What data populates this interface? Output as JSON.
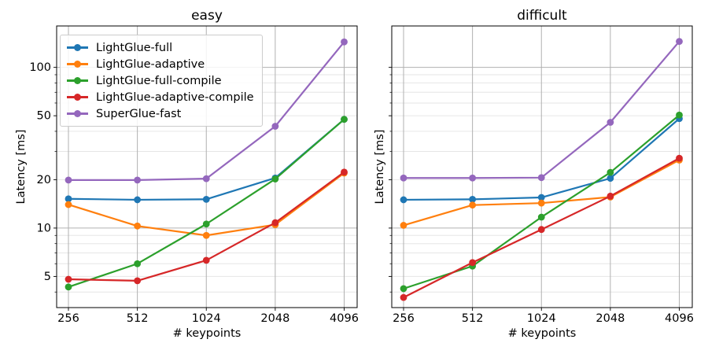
{
  "figure": {
    "background": "#ffffff"
  },
  "colors": {
    "grid_major": "#b0b0b0",
    "grid_minor": "#e6e6e6",
    "spine": "#000000",
    "text": "#000000"
  },
  "legend": {
    "entries": [
      {
        "label": "LightGlue-full",
        "color": "#1f77b4"
      },
      {
        "label": "LightGlue-adaptive",
        "color": "#ff7f0e"
      },
      {
        "label": "LightGlue-full-compile",
        "color": "#2ca02c"
      },
      {
        "label": "LightGlue-adaptive-compile",
        "color": "#d62728"
      },
      {
        "label": "SuperGlue-fast",
        "color": "#9467bd"
      }
    ]
  },
  "chart_data": [
    {
      "type": "line",
      "title": "easy",
      "xlabel": "# keypoints",
      "ylabel": "Latency [ms]",
      "x_scale": "log2",
      "y_scale": "log10",
      "x": [
        256,
        512,
        1024,
        2048,
        4096
      ],
      "x_tick_labels": [
        "256",
        "512",
        "1024",
        "2048",
        "4096"
      ],
      "y_tick_values": [
        5,
        10,
        20,
        50,
        100
      ],
      "y_tick_labels": [
        "5",
        "10",
        "20",
        "50",
        "100"
      ],
      "y_grid_major": [
        10,
        100
      ],
      "ylim": [
        3.2,
        181
      ],
      "show_y_tick_labels": true,
      "legend_visible": true,
      "grid": true,
      "series": [
        {
          "name": "LightGlue-full",
          "color": "#1f77b4",
          "values": [
            15.2,
            15.0,
            15.1,
            20.5,
            47.5
          ]
        },
        {
          "name": "LightGlue-adaptive",
          "color": "#ff7f0e",
          "values": [
            14.0,
            10.3,
            9.0,
            10.5,
            22.0
          ]
        },
        {
          "name": "LightGlue-full-compile",
          "color": "#2ca02c",
          "values": [
            4.3,
            6.0,
            10.6,
            20.2,
            47.5
          ]
        },
        {
          "name": "LightGlue-adaptive-compile",
          "color": "#d62728",
          "values": [
            4.8,
            4.7,
            6.3,
            10.8,
            22.3
          ]
        },
        {
          "name": "SuperGlue-fast",
          "color": "#9467bd",
          "values": [
            19.9,
            19.9,
            20.3,
            43.0,
            144
          ]
        }
      ]
    },
    {
      "type": "line",
      "title": "difficult",
      "xlabel": "# keypoints",
      "ylabel": "Latency [ms]",
      "x_scale": "log2",
      "y_scale": "log10",
      "x": [
        256,
        512,
        1024,
        2048,
        4096
      ],
      "x_tick_labels": [
        "256",
        "512",
        "1024",
        "2048",
        "4096"
      ],
      "y_tick_values": [
        5,
        10,
        20,
        50,
        100
      ],
      "y_tick_labels": [
        "5",
        "10",
        "20",
        "50",
        "100"
      ],
      "y_grid_major": [
        10,
        100
      ],
      "ylim": [
        3.2,
        181
      ],
      "show_y_tick_labels": false,
      "legend_visible": false,
      "grid": true,
      "series": [
        {
          "name": "LightGlue-full",
          "color": "#1f77b4",
          "values": [
            15.0,
            15.1,
            15.5,
            20.4,
            48.0
          ]
        },
        {
          "name": "LightGlue-adaptive",
          "color": "#ff7f0e",
          "values": [
            10.4,
            13.9,
            14.3,
            15.6,
            26.5
          ]
        },
        {
          "name": "LightGlue-full-compile",
          "color": "#2ca02c",
          "values": [
            4.2,
            5.8,
            11.7,
            22.2,
            50.5
          ]
        },
        {
          "name": "LightGlue-adaptive-compile",
          "color": "#d62728",
          "values": [
            3.7,
            6.1,
            9.8,
            15.8,
            27.2
          ]
        },
        {
          "name": "SuperGlue-fast",
          "color": "#9467bd",
          "values": [
            20.5,
            20.5,
            20.6,
            45.5,
            145
          ]
        }
      ]
    }
  ]
}
